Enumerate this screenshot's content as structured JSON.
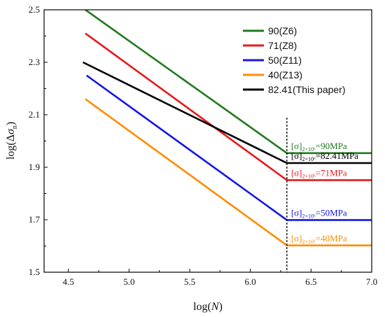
{
  "chart_data": {
    "type": "line",
    "xlabel": "log(N)",
    "ylabel": "log(Δσn)",
    "xlim": [
      4.3,
      7.0
    ],
    "ylim": [
      1.5,
      2.5
    ],
    "x_ticks": [
      "4.5",
      "5.0",
      "5.5",
      "6.0",
      "6.5",
      "7.0"
    ],
    "y_ticks": [
      "1.5",
      "1.7",
      "1.9",
      "2.1",
      "2.3",
      "2.5"
    ],
    "grid": false,
    "legend_position": "top-right",
    "reference_line": {
      "x": 6.301,
      "style": "dashed"
    },
    "series": [
      {
        "name": "90(Z6)",
        "color": "#1f7a1f",
        "x": [
          4.64,
          6.301,
          7.0
        ],
        "y": [
          2.5,
          1.954,
          1.954
        ]
      },
      {
        "name": "71(Z8)",
        "color": "#e8191a",
        "x": [
          4.64,
          6.301,
          7.0
        ],
        "y": [
          2.41,
          1.851,
          1.851
        ]
      },
      {
        "name": "50(Z11)",
        "color": "#1515e8",
        "x": [
          4.65,
          6.301,
          7.0
        ],
        "y": [
          2.25,
          1.699,
          1.699
        ]
      },
      {
        "name": "40(Z13)",
        "color": "#ff8c00",
        "x": [
          4.64,
          6.301,
          7.0
        ],
        "y": [
          2.16,
          1.602,
          1.602
        ]
      },
      {
        "name": "82.41(This paper)",
        "color": "#000000",
        "x": [
          4.62,
          6.301,
          7.0
        ],
        "y": [
          2.3,
          1.916,
          1.916
        ]
      }
    ],
    "annotations": [
      {
        "color": "#1f7a1f",
        "main": "[σ]",
        "sub": "2×10⁶",
        "tail": "=90MPa"
      },
      {
        "color": "#000000",
        "main": "[σ]",
        "sub": "2×10⁶",
        "tail": "=82.41MPa"
      },
      {
        "color": "#e8191a",
        "main": "[σ]",
        "sub": "2×10⁶",
        "tail": "=71MPa"
      },
      {
        "color": "#1515e8",
        "main": "[σ]",
        "sub": "2×10⁶",
        "tail": "=50MPa"
      },
      {
        "color": "#ff8c00",
        "main": "[σ]",
        "sub": "2×10⁶",
        "tail": "=40MPa"
      }
    ]
  }
}
